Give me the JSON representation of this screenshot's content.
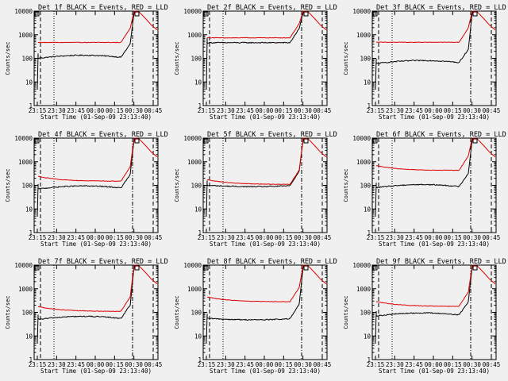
{
  "chart_data": [
    {
      "type": "line",
      "title": "Det 1f BLACK = Events, RED = LLD",
      "series": [
        {
          "name": "Events",
          "color": "#000000",
          "base": 100,
          "shape": "hump"
        },
        {
          "name": "LLD",
          "color": "#dd0000",
          "base": 470,
          "shape": "flat"
        }
      ],
      "xticks": [
        "23:15",
        "23:30",
        "23:45",
        "00:00",
        "00:15",
        "00:30",
        "00:45"
      ],
      "yticks": [
        "1",
        "10",
        "100",
        "1000",
        "10000"
      ],
      "ylim": [
        1,
        10000
      ],
      "yscale": "log",
      "xlabel": "Start Time (01-Sep-09 23:13:40)",
      "ylabel": "Counts/sec"
    },
    {
      "type": "line",
      "title": "Det 2f BLACK = Events, RED = LLD",
      "series": [
        {
          "name": "Events",
          "color": "#000000",
          "base": 460,
          "shape": "flat"
        },
        {
          "name": "LLD",
          "color": "#dd0000",
          "base": 740,
          "shape": "flat"
        }
      ],
      "xticks": [
        "23:15",
        "23:30",
        "23:45",
        "00:00",
        "00:15",
        "00:30",
        "00:45"
      ],
      "yticks": [
        "1",
        "10",
        "100",
        "1000",
        "10000"
      ],
      "ylim": [
        1,
        10000
      ],
      "yscale": "log",
      "xlabel": "Start Time (01-Sep-09 23:13:40)",
      "ylabel": "Counts/sec"
    },
    {
      "type": "line",
      "title": "Det 3f BLACK = Events, RED = LLD",
      "series": [
        {
          "name": "Events",
          "color": "#000000",
          "base": 60,
          "shape": "hump"
        },
        {
          "name": "LLD",
          "color": "#dd0000",
          "base": 480,
          "shape": "flat"
        }
      ],
      "xticks": [
        "23:15",
        "23:30",
        "23:45",
        "00:00",
        "00:15",
        "00:30",
        "00:45"
      ],
      "yticks": [
        "1",
        "10",
        "100",
        "1000",
        "10000"
      ],
      "ylim": [
        1,
        10000
      ],
      "yscale": "log",
      "xlabel": "Start Time (01-Sep-09 23:13:40)",
      "ylabel": "Counts/sec"
    },
    {
      "type": "line",
      "title": "Det 4f BLACK = Events, RED = LLD",
      "series": [
        {
          "name": "Events",
          "color": "#000000",
          "base": 70,
          "shape": "hump"
        },
        {
          "name": "LLD",
          "color": "#dd0000",
          "base": 150,
          "shape": "decay"
        }
      ],
      "xticks": [
        "23:15",
        "23:30",
        "23:45",
        "00:00",
        "00:15",
        "00:30",
        "00:45"
      ],
      "yticks": [
        "1",
        "10",
        "100",
        "1000",
        "10000"
      ],
      "ylim": [
        1,
        10000
      ],
      "yscale": "log",
      "xlabel": "Start Time (01-Sep-09 23:13:40)",
      "ylabel": "Counts/sec"
    },
    {
      "type": "line",
      "title": "Det 5f BLACK = Events, RED = LLD",
      "series": [
        {
          "name": "Events",
          "color": "#000000",
          "base": 100,
          "shape": "sag"
        },
        {
          "name": "LLD",
          "color": "#dd0000",
          "base": 110,
          "shape": "decay"
        }
      ],
      "xticks": [
        "23:15",
        "23:30",
        "23:45",
        "00:00",
        "00:15",
        "00:30",
        "00:45"
      ],
      "yticks": [
        "1",
        "10",
        "100",
        "1000",
        "10000"
      ],
      "ylim": [
        1,
        10000
      ],
      "yscale": "log",
      "xlabel": "Start Time (01-Sep-09 23:13:40)",
      "ylabel": "Counts/sec"
    },
    {
      "type": "line",
      "title": "Det 6f BLACK = Events, RED = LLD",
      "series": [
        {
          "name": "Events",
          "color": "#000000",
          "base": 80,
          "shape": "hump"
        },
        {
          "name": "LLD",
          "color": "#dd0000",
          "base": 430,
          "shape": "decay"
        }
      ],
      "xticks": [
        "23:15",
        "23:30",
        "23:45",
        "00:00",
        "00:15",
        "00:30",
        "00:45"
      ],
      "yticks": [
        "1",
        "10",
        "100",
        "1000",
        "10000"
      ],
      "ylim": [
        1,
        10000
      ],
      "yscale": "log",
      "xlabel": "Start Time (01-Sep-09 23:13:40)",
      "ylabel": "Counts/sec"
    },
    {
      "type": "line",
      "title": "Det 7f BLACK = Events, RED = LLD",
      "series": [
        {
          "name": "Events",
          "color": "#000000",
          "base": 50,
          "shape": "hump"
        },
        {
          "name": "LLD",
          "color": "#dd0000",
          "base": 110,
          "shape": "decay"
        }
      ],
      "xticks": [
        "23:15",
        "23:30",
        "23:45",
        "00:00",
        "00:15",
        "00:30",
        "00:45"
      ],
      "yticks": [
        "1",
        "10",
        "100",
        "1000",
        "10000"
      ],
      "ylim": [
        1,
        10000
      ],
      "yscale": "log",
      "xlabel": "Start Time (01-Sep-09 23:13:40)",
      "ylabel": "Counts/sec"
    },
    {
      "type": "line",
      "title": "Det 8f BLACK = Events, RED = LLD",
      "series": [
        {
          "name": "Events",
          "color": "#000000",
          "base": 55,
          "shape": "sag"
        },
        {
          "name": "LLD",
          "color": "#dd0000",
          "base": 280,
          "shape": "decay"
        }
      ],
      "xticks": [
        "23:15",
        "23:30",
        "23:45",
        "00:00",
        "00:15",
        "00:30",
        "00:45"
      ],
      "yticks": [
        "1",
        "10",
        "100",
        "1000",
        "10000"
      ],
      "ylim": [
        1,
        10000
      ],
      "yscale": "log",
      "xlabel": "Start Time (01-Sep-09 23:13:40)",
      "ylabel": "Counts/sec"
    },
    {
      "type": "line",
      "title": "Det 9f BLACK = Events, RED = LLD",
      "series": [
        {
          "name": "Events",
          "color": "#000000",
          "base": 70,
          "shape": "hump"
        },
        {
          "name": "LLD",
          "color": "#dd0000",
          "base": 180,
          "shape": "decay"
        }
      ],
      "xticks": [
        "23:15",
        "23:30",
        "23:45",
        "00:00",
        "00:15",
        "00:30",
        "00:45"
      ],
      "yticks": [
        "1",
        "10",
        "100",
        "1000",
        "10000"
      ],
      "ylim": [
        1,
        10000
      ],
      "yscale": "log",
      "xlabel": "Start Time (01-Sep-09 23:13:40)",
      "ylabel": "Counts/sec"
    }
  ]
}
